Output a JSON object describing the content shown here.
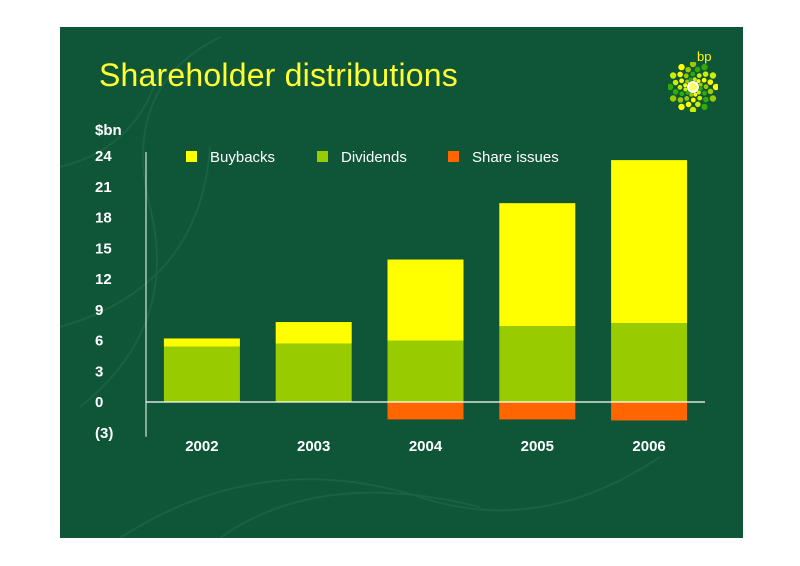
{
  "slide": {
    "title": "Shareholder distributions",
    "brand": "bp",
    "background": "#0f5538"
  },
  "chart_data": {
    "type": "bar",
    "stacked": true,
    "title": "Shareholder distributions",
    "ylabel": "$bn",
    "xlabel": "",
    "categories": [
      "2002",
      "2003",
      "2004",
      "2005",
      "2006"
    ],
    "series": [
      {
        "name": "Dividends",
        "color": "#99cc00",
        "values": [
          5.4,
          5.7,
          6.0,
          7.4,
          7.7
        ]
      },
      {
        "name": "Buybacks",
        "color": "#ffff00",
        "values": [
          0.8,
          2.1,
          7.9,
          12.0,
          15.9
        ]
      },
      {
        "name": "Share issues",
        "color": "#ff6600",
        "values": [
          0,
          0,
          -1.7,
          -1.7,
          -1.8
        ]
      }
    ],
    "legend_order": [
      "Buybacks",
      "Dividends",
      "Share issues"
    ],
    "ylim": [
      -3,
      24
    ],
    "yticks": [
      -3,
      0,
      3,
      6,
      9,
      12,
      15,
      18,
      21,
      24
    ],
    "ytick_labels": [
      "(3)",
      "0",
      "3",
      "6",
      "9",
      "12",
      "15",
      "18",
      "21",
      "24"
    ],
    "legend_position": "top",
    "grid": false
  }
}
